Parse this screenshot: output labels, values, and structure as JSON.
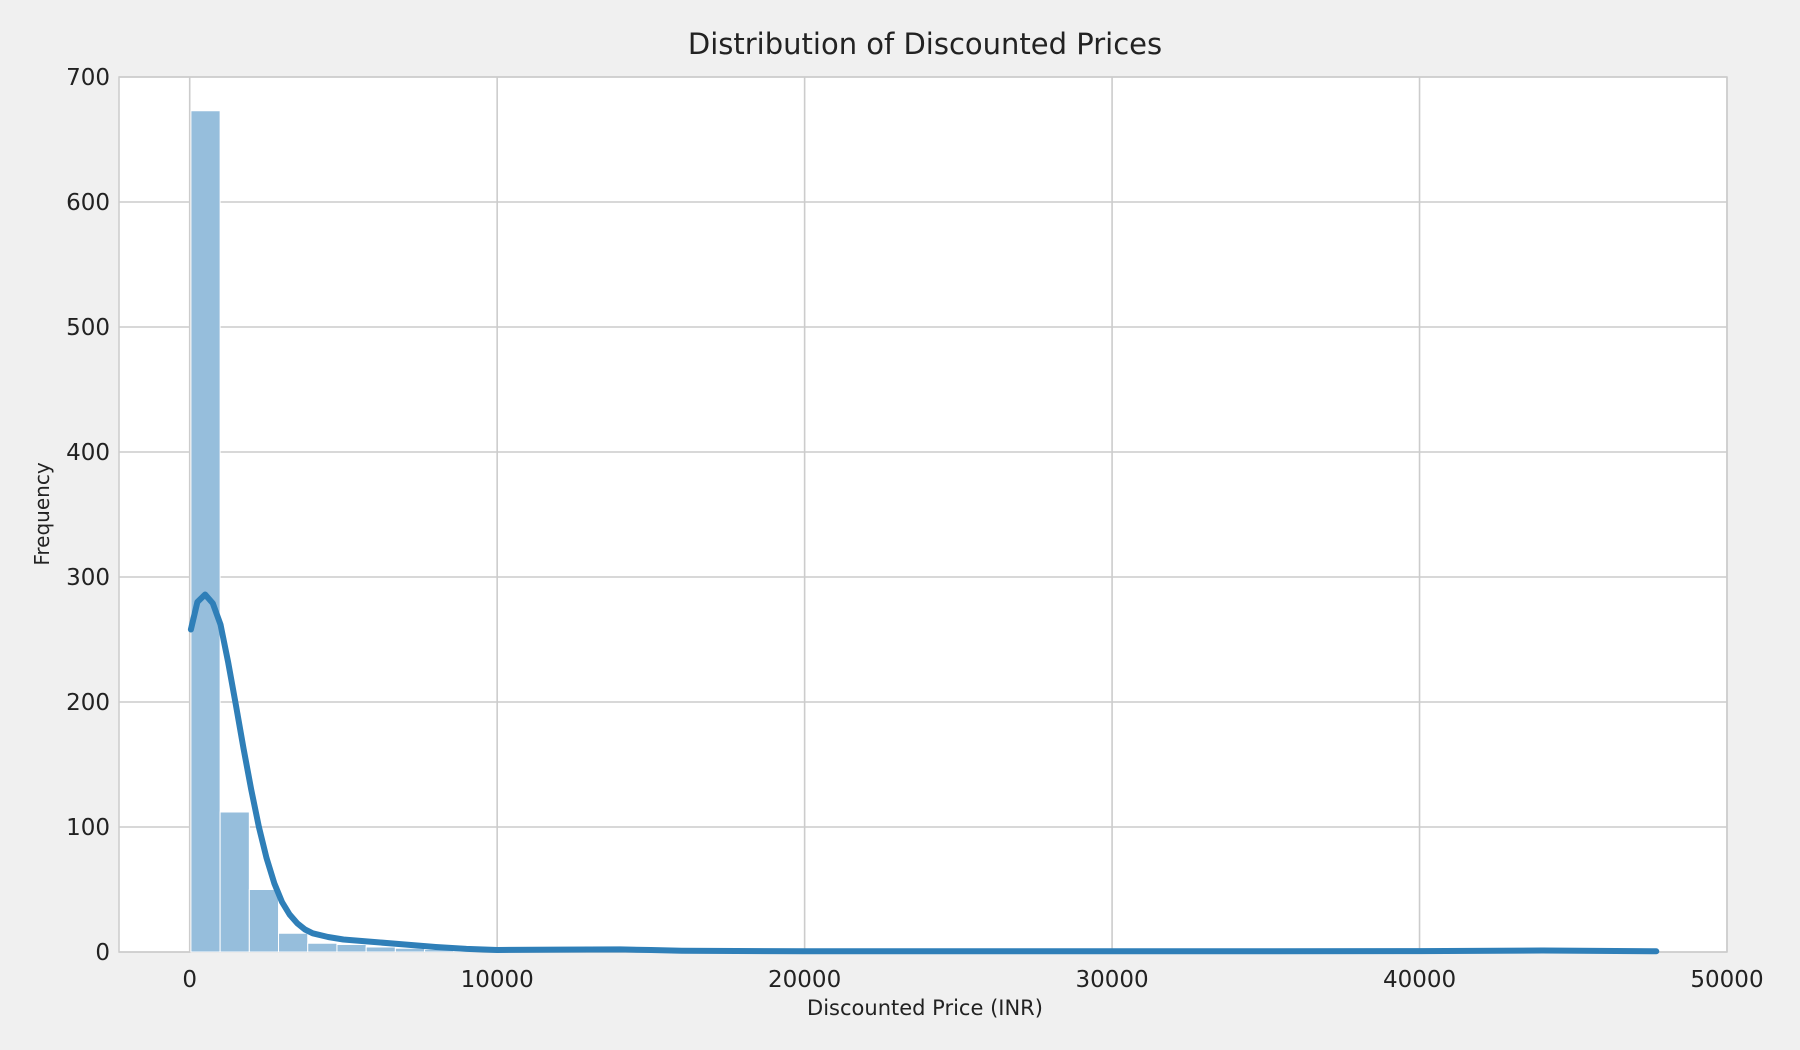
{
  "chart_data": {
    "type": "bar",
    "title": "Distribution of Discounted Prices",
    "xlabel": "Discounted Price (INR)",
    "ylabel": "Frequency",
    "xlim": [
      -2300,
      50000
    ],
    "ylim": [
      0,
      700
    ],
    "xticks": [
      0,
      10000,
      20000,
      30000,
      40000,
      50000
    ],
    "yticks": [
      0,
      100,
      200,
      300,
      400,
      500,
      600,
      700
    ],
    "grid": true,
    "bin_width": 950,
    "bins": [
      {
        "start": 39,
        "count": 673
      },
      {
        "start": 989,
        "count": 112
      },
      {
        "start": 1939,
        "count": 50
      },
      {
        "start": 2889,
        "count": 15
      },
      {
        "start": 3839,
        "count": 7
      },
      {
        "start": 4789,
        "count": 6
      },
      {
        "start": 5739,
        "count": 4
      },
      {
        "start": 6689,
        "count": 3
      },
      {
        "start": 7639,
        "count": 2
      },
      {
        "start": 8589,
        "count": 1
      },
      {
        "start": 9539,
        "count": 1
      },
      {
        "start": 10489,
        "count": 1
      },
      {
        "start": 12389,
        "count": 1
      },
      {
        "start": 14289,
        "count": 1
      },
      {
        "start": 16189,
        "count": 1
      },
      {
        "start": 18089,
        "count": 1
      },
      {
        "start": 19989,
        "count": 1
      },
      {
        "start": 22839,
        "count": 1
      },
      {
        "start": 25689,
        "count": 1
      },
      {
        "start": 29489,
        "count": 1
      },
      {
        "start": 31389,
        "count": 1
      },
      {
        "start": 34239,
        "count": 1
      },
      {
        "start": 37089,
        "count": 1
      },
      {
        "start": 39939,
        "count": 1
      },
      {
        "start": 42789,
        "count": 1
      },
      {
        "start": 44689,
        "count": 1
      },
      {
        "start": 46589,
        "count": 1
      }
    ],
    "kde": {
      "x": [
        39,
        250,
        500,
        750,
        1000,
        1250,
        1500,
        1750,
        2000,
        2250,
        2500,
        2750,
        3000,
        3250,
        3500,
        3750,
        4000,
        4500,
        5000,
        6000,
        7000,
        8000,
        9000,
        10000,
        12000,
        14000,
        15000,
        16000,
        20000,
        25000,
        30000,
        35000,
        40000,
        44000,
        47700
      ],
      "y": [
        258,
        280,
        286,
        279,
        262,
        232,
        198,
        163,
        130,
        100,
        75,
        55,
        40,
        30,
        23,
        18,
        15,
        12,
        10,
        8,
        6,
        4,
        2.5,
        1.6,
        1.9,
        2.1,
        1.6,
        1.0,
        0.6,
        0.6,
        0.6,
        0.6,
        0.7,
        1.2,
        0.6
      ]
    },
    "colors": {
      "bar_fill": "#96bedc",
      "bar_edge": "#ffffff",
      "kde_line": "#2f7fb8",
      "grid": "#cccccc",
      "background": "#ffffff",
      "figure_background": "#f0f0f0",
      "text": "#222222"
    }
  }
}
